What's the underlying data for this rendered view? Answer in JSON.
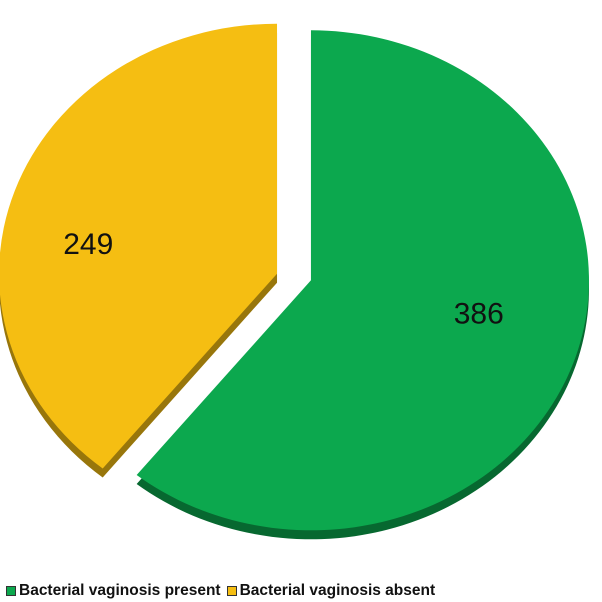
{
  "chart_data": {
    "type": "pie",
    "title": "",
    "exploded": true,
    "three_d": true,
    "legend_position": "bottom",
    "slices": [
      {
        "label": "Bacterial vaginosis present",
        "value": 386,
        "color": "#0CA84E"
      },
      {
        "label": "Bacterial vaginosis absent",
        "value": 249,
        "color": "#F5BE12"
      }
    ]
  }
}
